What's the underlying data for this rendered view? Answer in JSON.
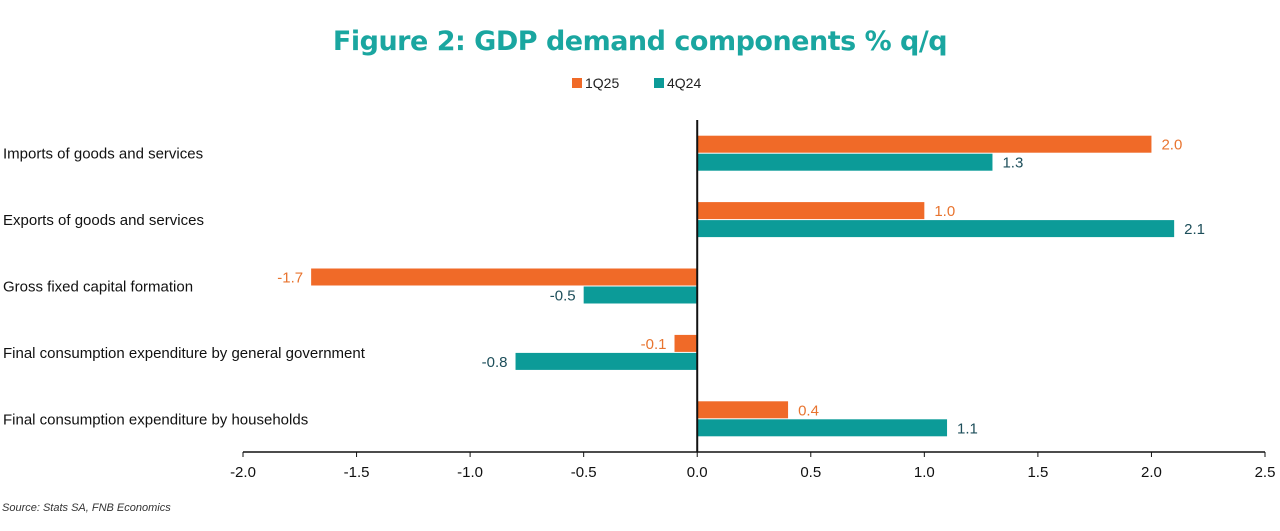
{
  "chart_data": {
    "type": "bar",
    "orientation": "horizontal",
    "title": "Figure 2: GDP demand components % q/q",
    "categories": [
      "Imports of goods and services",
      "Exports of goods and services",
      "Gross fixed capital formation",
      "Final consumption expenditure by general government",
      "Final consumption expenditure by households"
    ],
    "series": [
      {
        "name": "1Q25",
        "color": "#f06a28",
        "values": [
          2.0,
          1.0,
          -1.7,
          -0.1,
          0.4
        ]
      },
      {
        "name": "4Q24",
        "color": "#0c9b98",
        "values": [
          1.3,
          2.1,
          -0.5,
          -0.8,
          1.1
        ]
      }
    ],
    "xlim": [
      -2.0,
      2.5
    ],
    "xticks": [
      "-2.0",
      "-1.5",
      "-1.0",
      "-0.5",
      "0.0",
      "0.5",
      "1.0",
      "1.5",
      "2.0",
      "2.5"
    ],
    "grid": false,
    "legend": "top-center"
  },
  "source": "Source: Stats SA, FNB Economics"
}
